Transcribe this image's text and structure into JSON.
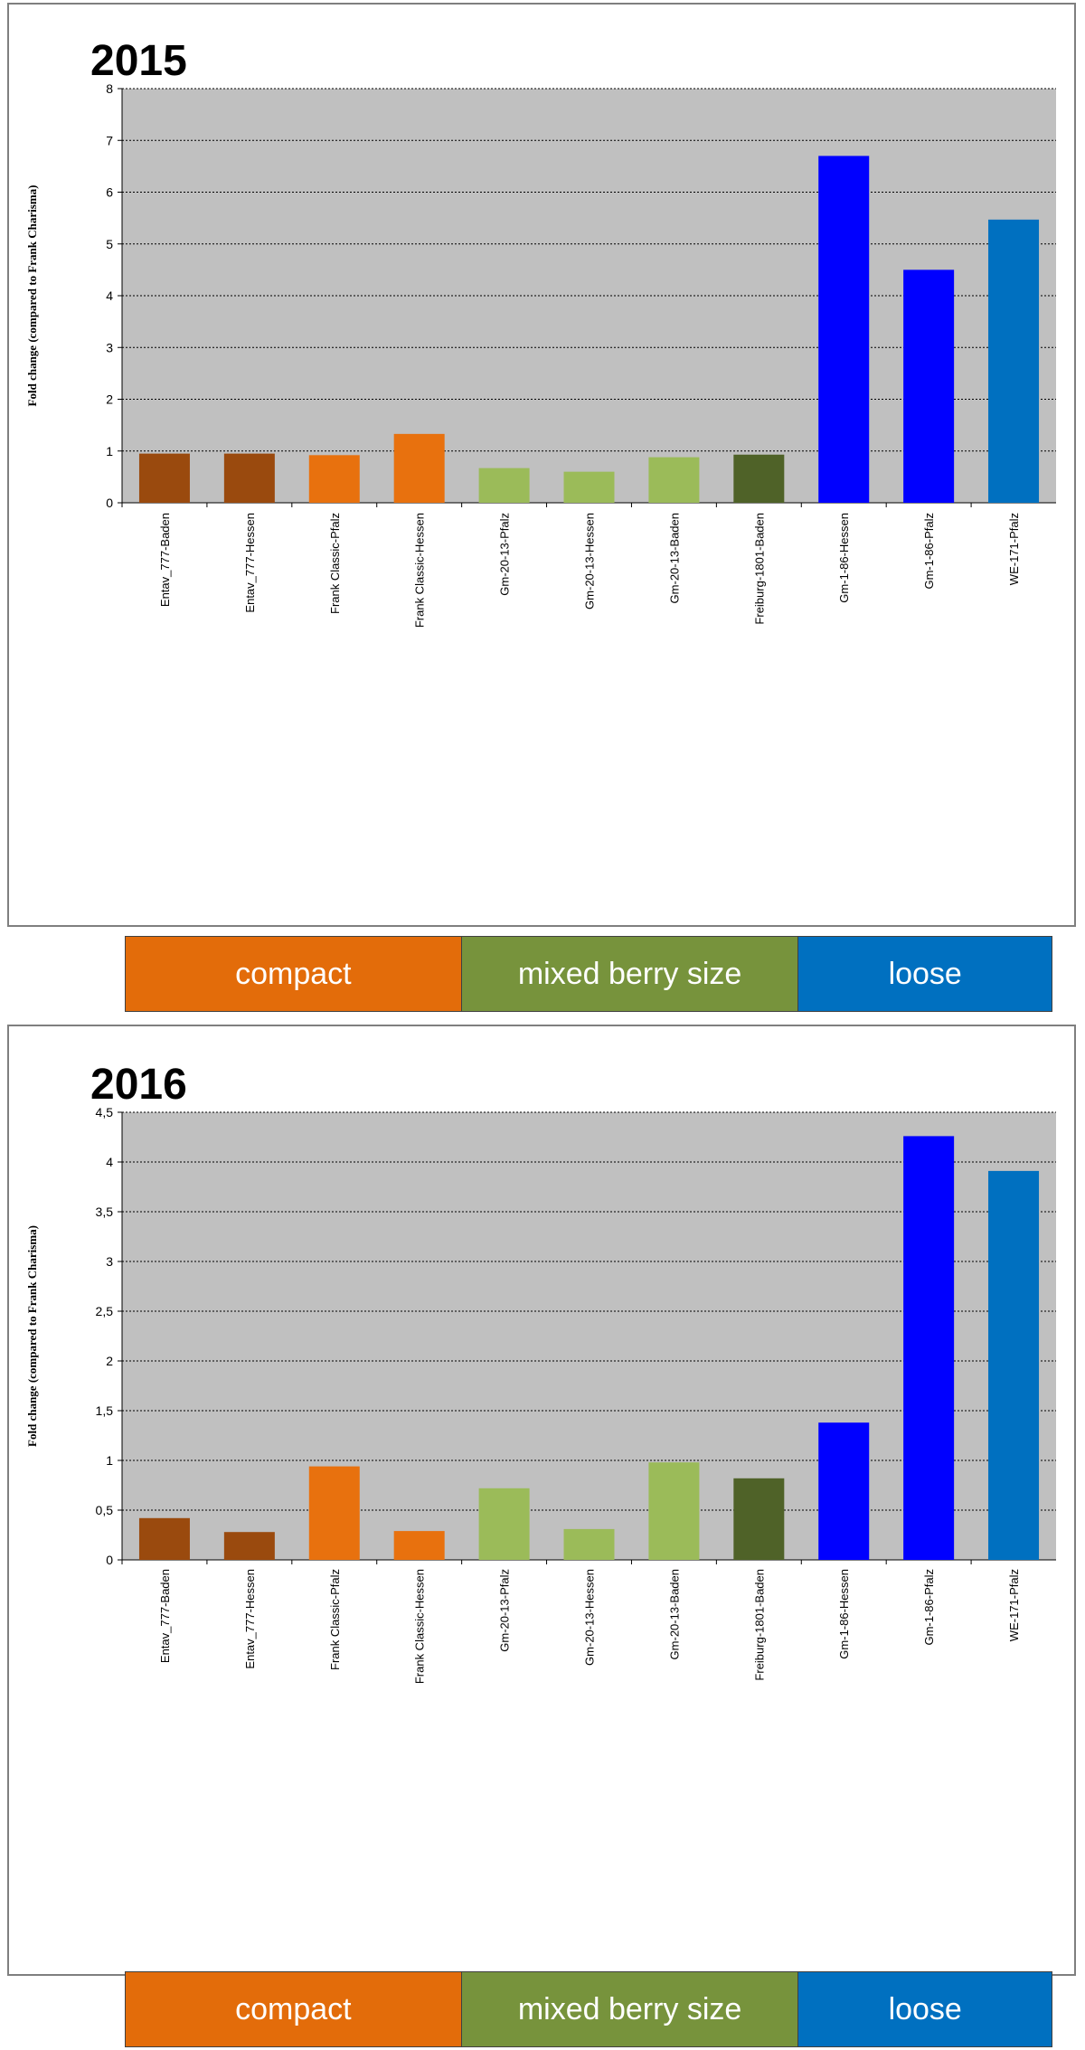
{
  "chart_data": [
    {
      "type": "bar",
      "title": "2015",
      "ylabel": "Fold change  (compared to Frank Charisma)",
      "xlabel": "",
      "ylim": [
        0,
        8
      ],
      "yticks": [
        "0",
        "1",
        "2",
        "3",
        "4",
        "5",
        "6",
        "7",
        "8"
      ],
      "ytick_values": [
        0,
        1,
        2,
        3,
        4,
        5,
        6,
        7,
        8
      ],
      "grid": true,
      "categories": [
        "Entav_777-Baden",
        "Entav_777-Hessen",
        "Frank Classic-Pfalz",
        "Frank Classic-Hessen",
        "Gm-20-13-Pfalz",
        "Gm-20-13-Hessen",
        "Gm-20-13-Baden",
        "Freiburg-1801-Baden",
        "Gm-1-86-Hessen",
        "Gm-1-86-Pfalz",
        "WE-171-Pfalz"
      ],
      "values": [
        0.95,
        0.95,
        0.92,
        1.33,
        0.67,
        0.6,
        0.88,
        0.93,
        6.7,
        4.5,
        5.47
      ],
      "bar_colors": [
        "#9a4a0e",
        "#9a4a0e",
        "#e8710e",
        "#e8710e",
        "#9bbb59",
        "#9bbb59",
        "#9bbb59",
        "#4f6228",
        "#0000ff",
        "#0000ff",
        "#0070c0"
      ]
    },
    {
      "type": "bar",
      "title": "2016",
      "ylabel": "Fold change  (compared to Frank Charisma)",
      "xlabel": "",
      "ylim": [
        0,
        4.5
      ],
      "yticks": [
        "0",
        "0,5",
        "1",
        "1,5",
        "2",
        "2,5",
        "3",
        "3,5",
        "4",
        "4,5"
      ],
      "ytick_values": [
        0,
        0.5,
        1,
        1.5,
        2,
        2.5,
        3,
        3.5,
        4,
        4.5
      ],
      "grid": true,
      "categories": [
        "Entav_777-Baden",
        "Entav_777-Hessen",
        "Frank Classic-Pfalz",
        "Frank Classic-Hessen",
        "Gm-20-13-Pfalz",
        "Gm-20-13-Hessen",
        "Gm-20-13-Baden",
        "Freiburg-1801-Baden",
        "Gm-1-86-Hessen",
        "Gm-1-86-Pfalz",
        "WE-171-Pfalz"
      ],
      "values": [
        0.42,
        0.28,
        0.94,
        0.29,
        0.72,
        0.31,
        0.98,
        0.82,
        1.38,
        4.26,
        3.91
      ],
      "bar_colors": [
        "#9a4a0e",
        "#9a4a0e",
        "#e8710e",
        "#e8710e",
        "#9bbb59",
        "#9bbb59",
        "#9bbb59",
        "#4f6228",
        "#0000ff",
        "#0000ff",
        "#0070c0"
      ]
    }
  ],
  "legend": {
    "segments": [
      {
        "label": "compact",
        "color": "#e36c0a",
        "text_color": "#ffffff",
        "share": 0.363
      },
      {
        "label": "mixed berry size",
        "color": "#77933c",
        "text_color": "#ffffff",
        "share": 0.364
      },
      {
        "label": "loose",
        "color": "#0070c0",
        "text_color": "#ffffff",
        "share": 0.273
      }
    ]
  },
  "colors": {
    "plot_background": "#c0c0c0",
    "gridline": "#000000"
  }
}
